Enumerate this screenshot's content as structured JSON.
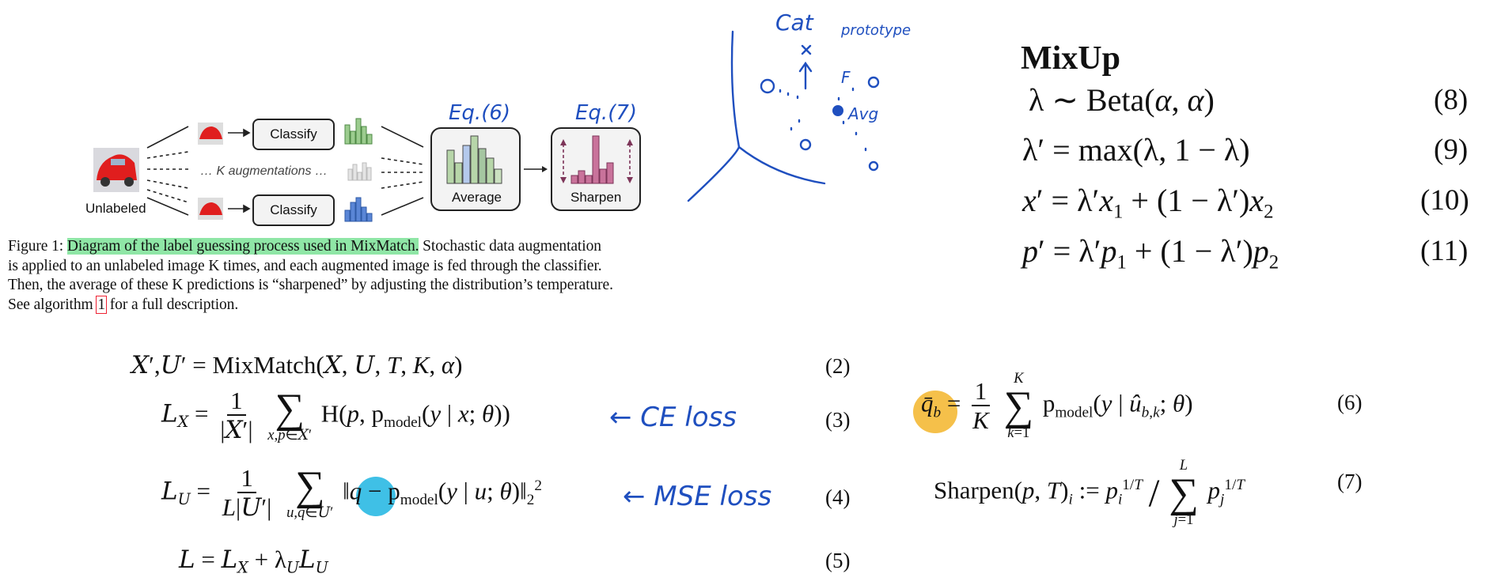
{
  "diagram": {
    "unlabeled": "Unlabeled",
    "classify_top": "Classify",
    "classify_bottom": "Classify",
    "k_aug": "… K augmentations …",
    "average": "Average",
    "sharpen": "Sharpen",
    "note_eq6": "Eq.(6)",
    "note_eq7": "Eq.(7)"
  },
  "caption": {
    "label": "Figure 1:",
    "highlight": "Diagram of the label guessing process used in MixMatch.",
    "line1_rest": "Stochastic data augmentation",
    "line2": "is applied to an unlabeled image K times, and each augmented image is fed through the classifier.",
    "line3": "Then, the average of these K predictions is “sharpened” by adjusting the distribution’s temperature.",
    "line4_pre": "See algorithm",
    "line4_ref": "1",
    "line4_post": "for a full description."
  },
  "sketch": {
    "cat": "Cat",
    "prototype": "prototype",
    "f": "F",
    "avg": "Avg"
  },
  "mixup": {
    "title": "MixUp",
    "eq8_num": "(8)",
    "eq9_num": "(9)",
    "eq10_num": "(10)",
    "eq11_num": "(11)"
  },
  "equations": {
    "eq2_num": "(2)",
    "eq3_num": "(3)",
    "eq4_num": "(4)",
    "eq5_num": "(5)",
    "eq6_num": "(6)",
    "eq7_num": "(7)",
    "note_ce": "← CE loss",
    "note_mse": "← MSE loss"
  },
  "colors": {
    "highlight_green": "#8fe6a6",
    "ink_blue": "#1f4fbf",
    "marker_orange": "#f5c04a",
    "marker_cyan": "#3fc0e6",
    "bar_green": "#9ccc8f",
    "bar_pink": "#c9739b",
    "bar_blue": "#5a86d6"
  }
}
